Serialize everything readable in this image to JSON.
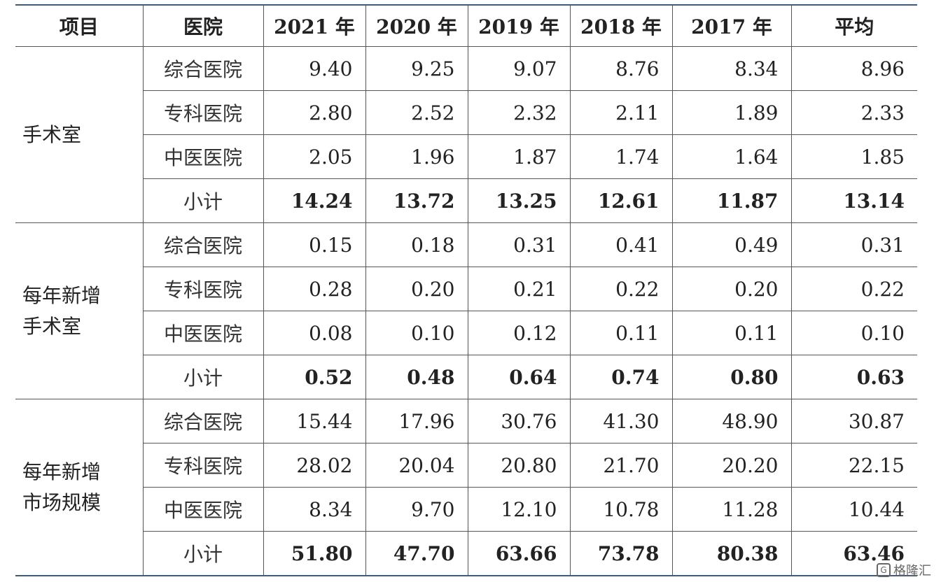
{
  "table": {
    "headers": [
      "项目",
      "医院",
      "2021 年",
      "2020 年",
      "2019 年",
      "2018 年",
      "2017 年",
      "平均"
    ],
    "groups": [
      {
        "label": "手术室",
        "rows": [
          {
            "hospital": "综合医院",
            "values": [
              "9.40",
              "9.25",
              "9.07",
              "8.76",
              "8.34",
              "8.96"
            ]
          },
          {
            "hospital": "专科医院",
            "values": [
              "2.80",
              "2.52",
              "2.32",
              "2.11",
              "1.89",
              "2.33"
            ]
          },
          {
            "hospital": "中医医院",
            "values": [
              "2.05",
              "1.96",
              "1.87",
              "1.74",
              "1.64",
              "1.85"
            ]
          },
          {
            "hospital": "小计",
            "values": [
              "14.24",
              "13.72",
              "13.25",
              "12.61",
              "11.87",
              "13.14"
            ]
          }
        ]
      },
      {
        "label": "每年新增手术室",
        "label_lines": [
          "每年新增",
          "手术室"
        ],
        "rows": [
          {
            "hospital": "综合医院",
            "values": [
              "0.15",
              "0.18",
              "0.31",
              "0.41",
              "0.49",
              "0.31"
            ]
          },
          {
            "hospital": "专科医院",
            "values": [
              "0.28",
              "0.20",
              "0.21",
              "0.22",
              "0.20",
              "0.22"
            ]
          },
          {
            "hospital": "中医医院",
            "values": [
              "0.08",
              "0.10",
              "0.12",
              "0.11",
              "0.11",
              "0.10"
            ]
          },
          {
            "hospital": "小计",
            "values": [
              "0.52",
              "0.48",
              "0.64",
              "0.74",
              "0.80",
              "0.63"
            ]
          }
        ]
      },
      {
        "label": "每年新增市场规模",
        "label_lines": [
          "每年新增",
          "市场规模"
        ],
        "rows": [
          {
            "hospital": "综合医院",
            "values": [
              "15.44",
              "17.96",
              "30.76",
              "41.30",
              "48.90",
              "30.87"
            ]
          },
          {
            "hospital": "专科医院",
            "values": [
              "28.02",
              "20.04",
              "20.80",
              "21.70",
              "20.20",
              "22.15"
            ]
          },
          {
            "hospital": "中医医院",
            "values": [
              "8.34",
              "9.70",
              "12.10",
              "10.78",
              "11.28",
              "10.44"
            ]
          },
          {
            "hospital": "小计",
            "values": [
              "51.80",
              "47.70",
              "63.66",
              "73.78",
              "80.38",
              "63.46"
            ]
          }
        ]
      }
    ]
  },
  "watermark": {
    "text": "格隆汇",
    "logo_glyph": "G"
  }
}
